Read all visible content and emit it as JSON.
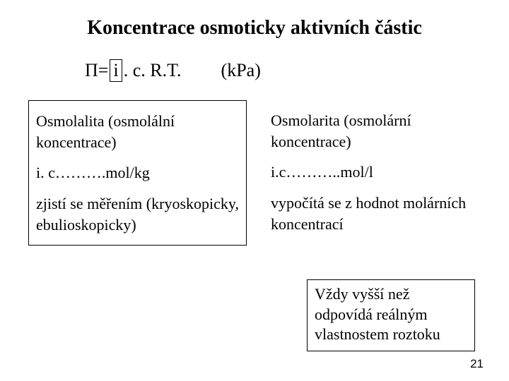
{
  "title": "Koncentrace osmoticky aktivních částic",
  "formula": {
    "pi": "Π",
    "eq": " = ",
    "i": "i",
    "rest": ". c. R.T.",
    "unit": "(kPa)"
  },
  "left": {
    "heading": "Osmolalita (osmolální koncentrace)",
    "units": "i. c……….mol/kg",
    "method": "zjistí se měřením (kryoskopicky, ebulioskopicky)"
  },
  "right": {
    "heading": "Osmolarita (osmolární koncentrace)",
    "units": "i.c………..mol/l",
    "method": "vypočítá se z hodnot molárních koncentrací"
  },
  "note": "Vždy vyšší než odpovídá reálným vlastnostem roztoku",
  "page": "21",
  "colors": {
    "bg": "#ffffff",
    "text": "#000000",
    "border": "#000000"
  }
}
